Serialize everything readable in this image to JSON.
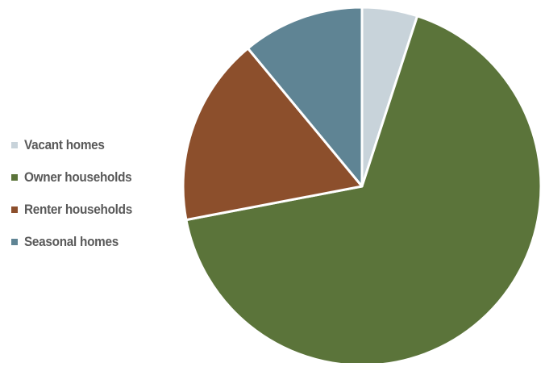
{
  "chart_data": {
    "type": "pie",
    "title": "",
    "legend_position": "left",
    "start_angle": "12 o'clock, clockwise",
    "series": [
      {
        "name": "Vacant homes",
        "value": 5,
        "color": "#c8d3da"
      },
      {
        "name": "Owner households",
        "value": 67,
        "color": "#5b743a"
      },
      {
        "name": "Renter households",
        "value": 17,
        "color": "#8c4f2c"
      },
      {
        "name": "Seasonal homes",
        "value": 11,
        "color": "#5f8494"
      }
    ]
  }
}
